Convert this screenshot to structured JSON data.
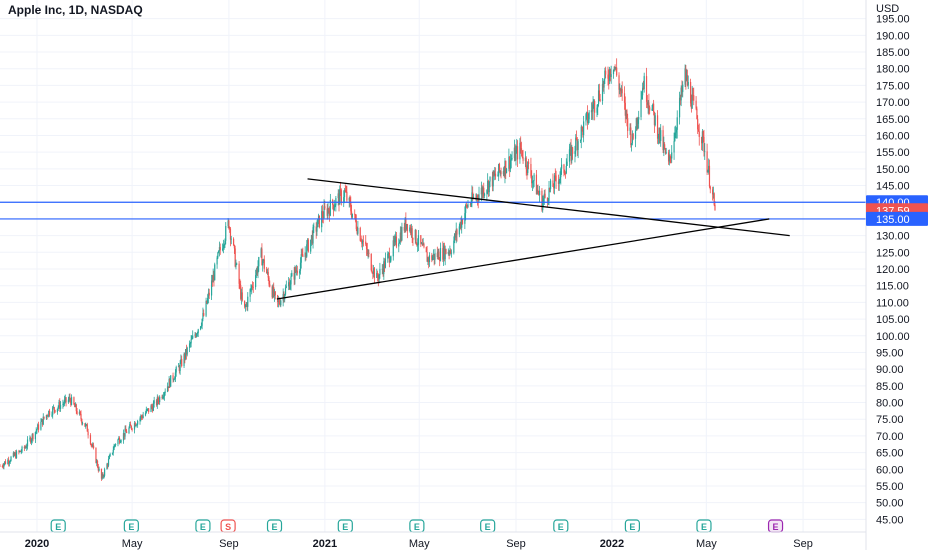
{
  "chart_data": {
    "type": "candlestick",
    "title": "Apple Inc, 1D, NASDAQ",
    "currency": "USD",
    "y_ticks": [
      45,
      50,
      55,
      60,
      65,
      70,
      75,
      80,
      85,
      90,
      95,
      100,
      105,
      110,
      115,
      120,
      125,
      130,
      135,
      140,
      145,
      150,
      155,
      160,
      165,
      170,
      175,
      180,
      185,
      190,
      195
    ],
    "y_tick_labels": [
      "45.00",
      "50.00",
      "55.00",
      "60.00",
      "65.00",
      "70.00",
      "75.00",
      "80.00",
      "85.00",
      "90.00",
      "95.00",
      "100.00",
      "105.00",
      "110.00",
      "115.00",
      "120.00",
      "125.00",
      "130.00",
      "135.00",
      "140.00",
      "145.00",
      "150.00",
      "155.00",
      "160.00",
      "165.00",
      "170.00",
      "175.00",
      "180.00",
      "185.00",
      "190.00",
      "195.00"
    ],
    "ylim": [
      43,
      197
    ],
    "x_labels": [
      {
        "text": "2020",
        "date": "2020-01-01",
        "bold": true
      },
      {
        "text": "May",
        "date": "2020-05-01",
        "bold": false
      },
      {
        "text": "Sep",
        "date": "2020-09-01",
        "bold": false
      },
      {
        "text": "2021",
        "date": "2021-01-01",
        "bold": true
      },
      {
        "text": "May",
        "date": "2021-05-01",
        "bold": false
      },
      {
        "text": "Sep",
        "date": "2021-09-01",
        "bold": false
      },
      {
        "text": "2022",
        "date": "2022-01-01",
        "bold": true
      },
      {
        "text": "May",
        "date": "2022-05-01",
        "bold": false
      },
      {
        "text": "Sep",
        "date": "2022-09-01",
        "bold": false
      }
    ],
    "x_start": "2019-11-15",
    "x_end": "2022-11-20",
    "price_path": [
      {
        "date": "2019-11-15",
        "price": 61
      },
      {
        "date": "2019-12-15",
        "price": 66
      },
      {
        "date": "2020-01-15",
        "price": 77
      },
      {
        "date": "2020-02-12",
        "price": 81
      },
      {
        "date": "2020-03-05",
        "price": 72
      },
      {
        "date": "2020-03-23",
        "price": 57
      },
      {
        "date": "2020-04-10",
        "price": 68
      },
      {
        "date": "2020-05-05",
        "price": 74
      },
      {
        "date": "2020-06-01",
        "price": 80
      },
      {
        "date": "2020-07-01",
        "price": 91
      },
      {
        "date": "2020-07-31",
        "price": 106
      },
      {
        "date": "2020-08-20",
        "price": 125
      },
      {
        "date": "2020-09-01",
        "price": 134
      },
      {
        "date": "2020-09-20",
        "price": 107
      },
      {
        "date": "2020-10-12",
        "price": 124
      },
      {
        "date": "2020-11-01",
        "price": 109
      },
      {
        "date": "2020-12-01",
        "price": 122
      },
      {
        "date": "2020-12-28",
        "price": 136
      },
      {
        "date": "2021-01-26",
        "price": 143
      },
      {
        "date": "2021-03-08",
        "price": 117
      },
      {
        "date": "2021-04-15",
        "price": 134
      },
      {
        "date": "2021-05-12",
        "price": 123
      },
      {
        "date": "2021-06-10",
        "price": 126
      },
      {
        "date": "2021-07-01",
        "price": 139
      },
      {
        "date": "2021-07-30",
        "price": 146
      },
      {
        "date": "2021-09-07",
        "price": 156
      },
      {
        "date": "2021-10-04",
        "price": 140
      },
      {
        "date": "2021-11-01",
        "price": 150
      },
      {
        "date": "2021-12-01",
        "price": 165
      },
      {
        "date": "2022-01-03",
        "price": 182
      },
      {
        "date": "2022-01-27",
        "price": 158
      },
      {
        "date": "2022-02-10",
        "price": 176
      },
      {
        "date": "2022-03-14",
        "price": 151
      },
      {
        "date": "2022-04-04",
        "price": 178
      },
      {
        "date": "2022-04-28",
        "price": 157
      },
      {
        "date": "2022-05-12",
        "price": 137.59
      }
    ],
    "horizontal_lines": [
      140,
      135
    ],
    "trendlines": [
      {
        "name": "descending",
        "from": {
          "date": "2020-12-10",
          "price": 147
        },
        "to": {
          "date": "2022-08-15",
          "price": 130
        }
      },
      {
        "name": "ascending",
        "from": {
          "date": "2020-11-01",
          "price": 111
        },
        "to": {
          "date": "2022-07-20",
          "price": 135
        }
      }
    ],
    "price_tags": [
      {
        "label": "140.00",
        "value": 140,
        "color": "#2962ff"
      },
      {
        "label": "137.59",
        "value": 137.59,
        "color": "#ef5350"
      },
      {
        "label": "135.00",
        "value": 135,
        "color": "#2962ff"
      }
    ],
    "earnings_markers": [
      {
        "date": "2020-01-28",
        "label": "E"
      },
      {
        "date": "2020-04-30",
        "label": "E"
      },
      {
        "date": "2020-07-30",
        "label": "E"
      },
      {
        "date": "2020-10-29",
        "label": "E"
      },
      {
        "date": "2021-01-27",
        "label": "E"
      },
      {
        "date": "2021-04-28",
        "label": "E"
      },
      {
        "date": "2021-07-27",
        "label": "E"
      },
      {
        "date": "2021-10-28",
        "label": "E"
      },
      {
        "date": "2022-01-27",
        "label": "E"
      },
      {
        "date": "2022-04-28",
        "label": "E"
      },
      {
        "date": "2022-07-28",
        "label": "E"
      }
    ],
    "split_marker": {
      "date": "2020-08-31",
      "label": "S"
    },
    "colors": {
      "up": "#26a69a",
      "down": "#ef5350",
      "hline": "#2962ff",
      "trend": "#000000",
      "earnings": "#26a69a",
      "earnings_future": "#9c27b0",
      "split": "#ef5350"
    }
  }
}
